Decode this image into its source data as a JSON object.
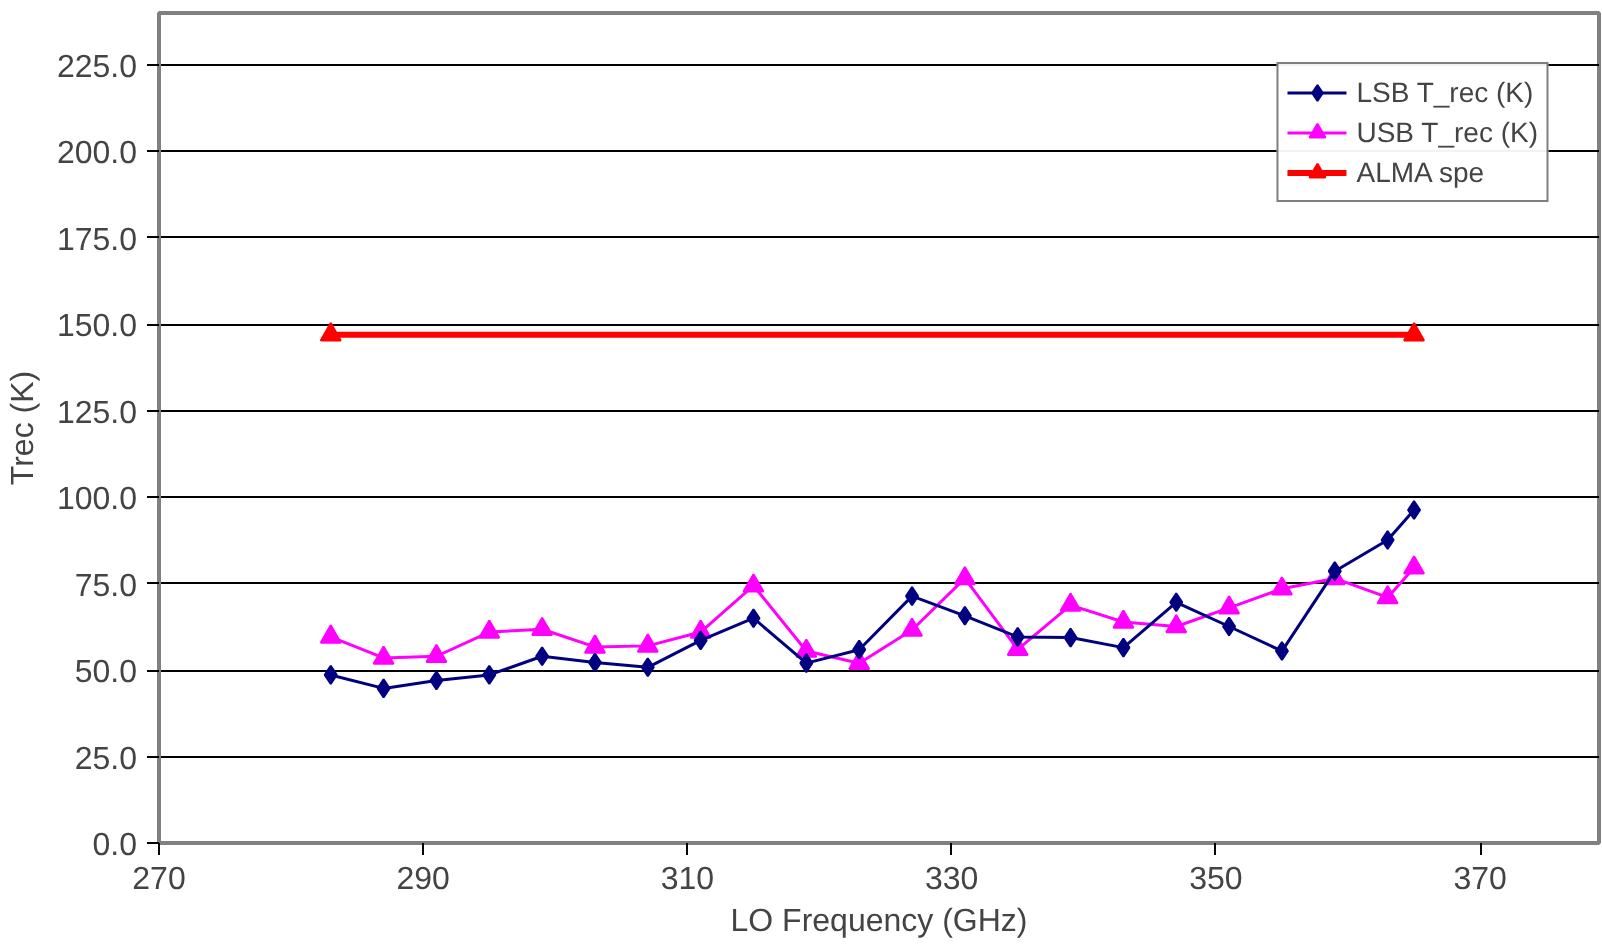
{
  "chart_data": {
    "type": "line",
    "xlabel": "LO Frequency (GHz)",
    "ylabel": "Trec (K)",
    "x": [
      283,
      287,
      291,
      295,
      299,
      303,
      307,
      311,
      315,
      319,
      323,
      327,
      331,
      335,
      339,
      343,
      347,
      351,
      355,
      359,
      363,
      365
    ],
    "series": [
      {
        "name": "LSB T_rec (K)",
        "color": "#000080",
        "marker": "diamond",
        "values": [
          48.6,
          44.7,
          47,
          48.6,
          54,
          52.2,
          50.8,
          58.6,
          65,
          52,
          55.9,
          71.4,
          65.7,
          59.6,
          59.4,
          56.5,
          69.6,
          62.6,
          55.5,
          78.6,
          87.6,
          96.3
        ]
      },
      {
        "name": "USB T_rec (K)",
        "color": "#ff00ff",
        "marker": "triangle",
        "values": [
          59.6,
          53.5,
          54,
          61,
          61.8,
          56.7,
          57,
          61,
          74.4,
          55.5,
          52,
          61.6,
          76.5,
          56,
          68.8,
          63.9,
          62.6,
          68,
          73.5,
          76.5,
          71,
          79.6
        ]
      },
      {
        "name": "ALMA spe",
        "color": "#ff0000",
        "marker": "triangle",
        "x": [
          283,
          365
        ],
        "values": [
          147,
          147
        ]
      }
    ],
    "xlim": [
      270,
      379
    ],
    "ylim": [
      0,
      240
    ],
    "xticks": [
      270,
      290,
      310,
      330,
      350,
      370
    ],
    "yticks": [
      {
        "value": 0,
        "label": "0.0"
      },
      {
        "value": 25,
        "label": "25.0"
      },
      {
        "value": 50,
        "label": "50.0"
      },
      {
        "value": 75,
        "label": "75.0"
      },
      {
        "value": 100,
        "label": "100.0"
      },
      {
        "value": 125,
        "label": "125.0"
      },
      {
        "value": 150,
        "label": "150.0"
      },
      {
        "value": 175,
        "label": "175.0"
      },
      {
        "value": 200,
        "label": "200.0"
      },
      {
        "value": 225,
        "label": "225.0"
      }
    ],
    "grid": "y",
    "legend": "top right",
    "line_style": "solid"
  }
}
